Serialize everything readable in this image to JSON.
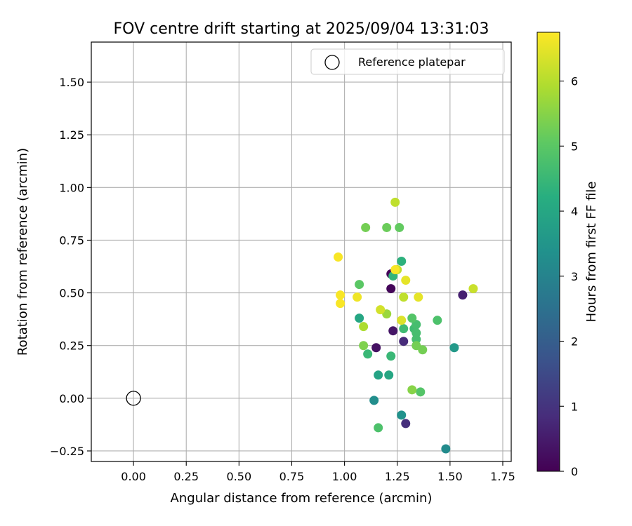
{
  "chart_data": {
    "type": "scatter",
    "title": "FOV centre drift starting at 2025/09/04 13:31:03",
    "xlabel": "Angular distance from reference (arcmin)",
    "ylabel": "Rotation from reference (arcmin)",
    "xlim": [
      -0.2,
      1.79
    ],
    "ylim": [
      -0.3,
      1.69
    ],
    "xticks": [
      "0.00",
      "0.25",
      "0.50",
      "0.75",
      "1.00",
      "1.25",
      "1.50",
      "1.75"
    ],
    "xtick_values": [
      0,
      0.25,
      0.5,
      0.75,
      1.0,
      1.25,
      1.5,
      1.75
    ],
    "yticks": [
      "−0.25",
      "0.00",
      "0.25",
      "0.50",
      "0.75",
      "1.00",
      "1.25",
      "1.50"
    ],
    "ytick_values": [
      -0.25,
      0,
      0.25,
      0.5,
      0.75,
      1.0,
      1.25,
      1.5
    ],
    "grid": true,
    "legend": {
      "label": "Reference platepar",
      "placement": "top-right"
    },
    "reference_point": {
      "x": 0.0,
      "y": 0.0
    },
    "colorbar": {
      "label": "Hours from first FF file",
      "colormap": "viridis",
      "range": [
        0,
        6.75
      ],
      "ticks": [
        "0",
        "1",
        "2",
        "3",
        "4",
        "5",
        "6"
      ],
      "tick_values": [
        0,
        1,
        2,
        3,
        4,
        5,
        6
      ]
    },
    "points": [
      {
        "x": 1.22,
        "y": 0.59,
        "hours": 0.1
      },
      {
        "x": 1.22,
        "y": 0.52,
        "hours": 0.1
      },
      {
        "x": 1.15,
        "y": 0.24,
        "hours": 0.3
      },
      {
        "x": 1.23,
        "y": 0.32,
        "hours": 0.4
      },
      {
        "x": 1.56,
        "y": 0.49,
        "hours": 0.6
      },
      {
        "x": 1.28,
        "y": 0.27,
        "hours": 0.8
      },
      {
        "x": 1.29,
        "y": -0.12,
        "hours": 0.9
      },
      {
        "x": 1.48,
        "y": -0.24,
        "hours": 3.2
      },
      {
        "x": 1.14,
        "y": -0.01,
        "hours": 3.3
      },
      {
        "x": 1.27,
        "y": -0.08,
        "hours": 3.4
      },
      {
        "x": 1.52,
        "y": 0.24,
        "hours": 3.6
      },
      {
        "x": 1.16,
        "y": 0.11,
        "hours": 3.9
      },
      {
        "x": 1.21,
        "y": 0.11,
        "hours": 4.0
      },
      {
        "x": 1.07,
        "y": 0.38,
        "hours": 4.0
      },
      {
        "x": 1.27,
        "y": 0.65,
        "hours": 4.3
      },
      {
        "x": 1.23,
        "y": 0.58,
        "hours": 4.4
      },
      {
        "x": 1.11,
        "y": 0.21,
        "hours": 4.5
      },
      {
        "x": 1.22,
        "y": 0.2,
        "hours": 4.5
      },
      {
        "x": 1.28,
        "y": 0.33,
        "hours": 4.6
      },
      {
        "x": 1.33,
        "y": 0.33,
        "hours": 4.6
      },
      {
        "x": 1.34,
        "y": 0.35,
        "hours": 4.7
      },
      {
        "x": 1.34,
        "y": 0.31,
        "hours": 4.7
      },
      {
        "x": 1.34,
        "y": 0.28,
        "hours": 4.7
      },
      {
        "x": 1.44,
        "y": 0.37,
        "hours": 4.8
      },
      {
        "x": 1.16,
        "y": -0.14,
        "hours": 4.8
      },
      {
        "x": 1.36,
        "y": 0.03,
        "hours": 4.9
      },
      {
        "x": 1.32,
        "y": 0.38,
        "hours": 4.9
      },
      {
        "x": 1.07,
        "y": 0.54,
        "hours": 5.0
      },
      {
        "x": 1.26,
        "y": 0.81,
        "hours": 5.1
      },
      {
        "x": 1.2,
        "y": 0.81,
        "hours": 5.2
      },
      {
        "x": 1.1,
        "y": 0.81,
        "hours": 5.3
      },
      {
        "x": 1.37,
        "y": 0.23,
        "hours": 5.3
      },
      {
        "x": 1.34,
        "y": 0.25,
        "hours": 5.3
      },
      {
        "x": 1.09,
        "y": 0.25,
        "hours": 5.4
      },
      {
        "x": 1.32,
        "y": 0.04,
        "hours": 5.5
      },
      {
        "x": 1.2,
        "y": 0.4,
        "hours": 5.7
      },
      {
        "x": 1.09,
        "y": 0.34,
        "hours": 5.9
      },
      {
        "x": 1.24,
        "y": 0.93,
        "hours": 6.1
      },
      {
        "x": 1.25,
        "y": 0.61,
        "hours": 6.1
      },
      {
        "x": 1.28,
        "y": 0.48,
        "hours": 6.1
      },
      {
        "x": 1.61,
        "y": 0.52,
        "hours": 6.2
      },
      {
        "x": 1.17,
        "y": 0.42,
        "hours": 6.3
      },
      {
        "x": 1.27,
        "y": 0.37,
        "hours": 6.4
      },
      {
        "x": 1.35,
        "y": 0.48,
        "hours": 6.5
      },
      {
        "x": 1.29,
        "y": 0.56,
        "hours": 6.5
      },
      {
        "x": 1.06,
        "y": 0.48,
        "hours": 6.6
      },
      {
        "x": 0.98,
        "y": 0.49,
        "hours": 6.7
      },
      {
        "x": 0.98,
        "y": 0.45,
        "hours": 6.7
      },
      {
        "x": 0.97,
        "y": 0.67,
        "hours": 6.7
      },
      {
        "x": 1.24,
        "y": 0.61,
        "hours": 6.7
      }
    ]
  }
}
